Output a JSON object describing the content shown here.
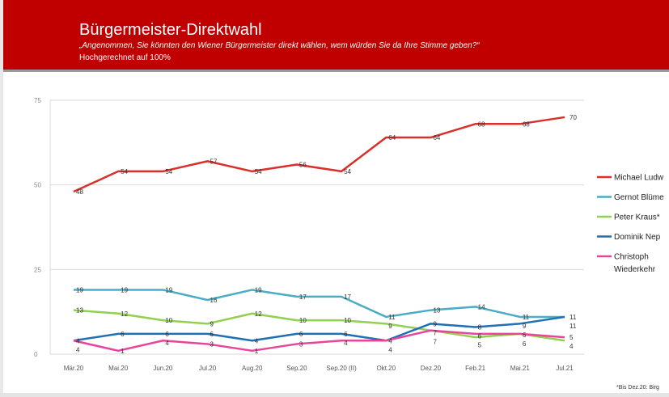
{
  "header": {
    "title": "Bürgermeister-Direktwahl",
    "subtitle": "„Angenommen, Sie könnten den Wiener Bürgermeister direkt wählen, wem würden Sie da Ihre Stimme geben?“",
    "note": "Hochgerechnet auf 100%"
  },
  "footnote": "*Bis Dez.20: Birg",
  "chart_data": {
    "type": "line",
    "categories": [
      "Mär.20",
      "Mai.20",
      "Jun.20",
      "Jul.20",
      "Aug.20",
      "Sep.20",
      "Sep.20 (II)",
      "Okt.20",
      "Dez.20",
      "Feb.21",
      "Mai.21",
      "Jul.21"
    ],
    "ylim": [
      0,
      75
    ],
    "yticks": [
      0,
      25,
      50,
      75
    ],
    "grid": true,
    "legend": "right",
    "series": [
      {
        "name": "Michael Ludw",
        "color": "#d9302a",
        "values": [
          48,
          54,
          54,
          57,
          54,
          56,
          54,
          64,
          64,
          68,
          68,
          70
        ]
      },
      {
        "name": "Gernot Blüme",
        "color": "#4bacc6",
        "values": [
          19,
          19,
          19,
          16,
          19,
          17,
          17,
          11,
          13,
          14,
          11,
          11
        ]
      },
      {
        "name": "Peter Kraus*",
        "color": "#92d050",
        "values": [
          13,
          12,
          10,
          9,
          12,
          10,
          10,
          9,
          7,
          5,
          6,
          4
        ]
      },
      {
        "name": "Dominik Nep",
        "color": "#1f6fb4",
        "values": [
          4,
          6,
          6,
          6,
          4,
          6,
          6,
          4,
          9,
          8,
          9,
          11
        ]
      },
      {
        "name": "Christoph Wiederkehr",
        "color": "#e8459a",
        "values": [
          4,
          1,
          4,
          3,
          1,
          3,
          4,
          4,
          7,
          6,
          6,
          5
        ]
      }
    ]
  }
}
